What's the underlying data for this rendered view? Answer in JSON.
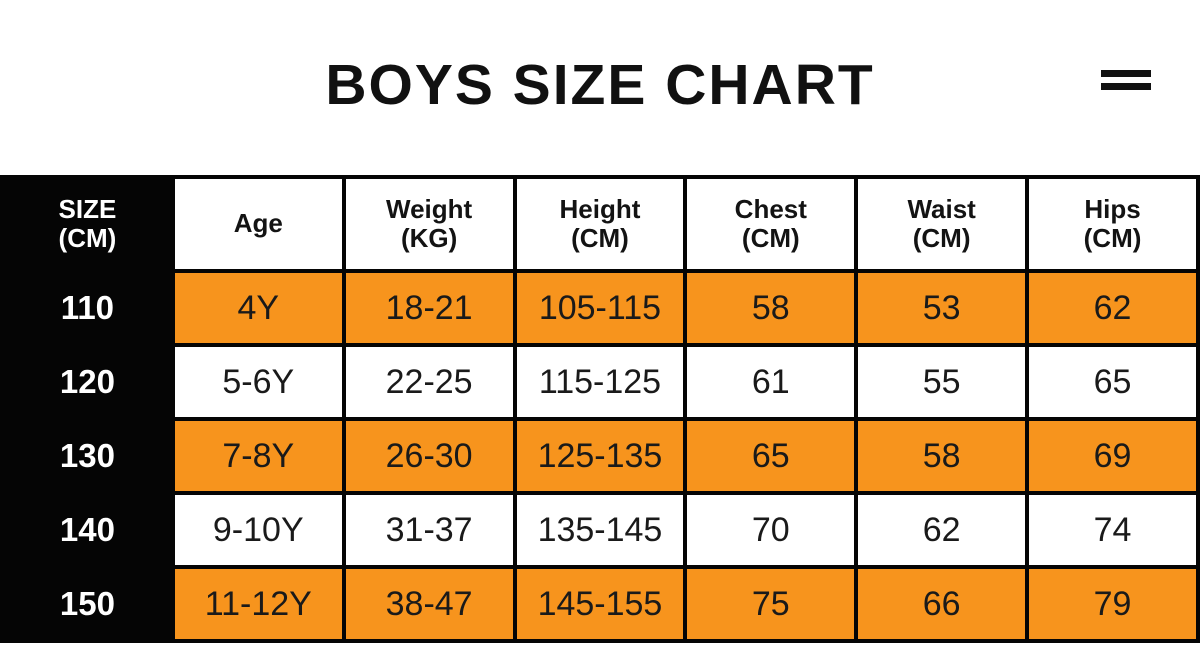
{
  "header": {
    "title": "BOYS SIZE CHART",
    "menu_icon": "two-bar-menu-icon"
  },
  "colors": {
    "accent_orange": "#F7941D",
    "table_black": "#050505",
    "text_dark": "#131313",
    "background": "#FFFFFF"
  },
  "chart_data": {
    "type": "table",
    "title": "BOYS SIZE CHART",
    "columns": [
      "SIZE\n(CM)",
      "Age",
      "Weight\n(KG)",
      "Height\n(CM)",
      "Chest\n(CM)",
      "Waist\n(CM)",
      "Hips\n(CM)"
    ],
    "rows": [
      [
        "110",
        "4Y",
        "18-21",
        "105-115",
        "58",
        "53",
        "62"
      ],
      [
        "120",
        "5-6Y",
        "22-25",
        "115-125",
        "61",
        "55",
        "65"
      ],
      [
        "130",
        "7-8Y",
        "26-30",
        "125-135",
        "65",
        "58",
        "69"
      ],
      [
        "140",
        "9-10Y",
        "31-37",
        "135-145",
        "70",
        "62",
        "74"
      ],
      [
        "150",
        "11-12Y",
        "38-47",
        "145-155",
        "75",
        "66",
        "79"
      ]
    ],
    "layout_hints": {
      "first_column_style": "black background, white text",
      "row_highlight_pattern": "rows 110, 130, 150 orange; rows 120, 140 white",
      "grid": "black 4px gridlines",
      "bottom_row_clipped": true
    }
  }
}
